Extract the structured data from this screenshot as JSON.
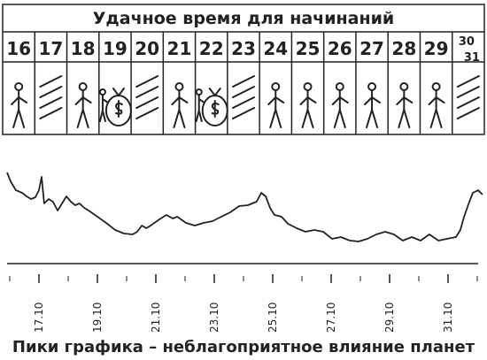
{
  "header": {
    "title": "Удачное время для начинаний",
    "days": [
      "16",
      "17",
      "18",
      "19",
      "20",
      "21",
      "22",
      "23",
      "24",
      "25",
      "26",
      "27",
      "28",
      "29",
      "30",
      "31"
    ]
  },
  "chart_data": {
    "type": "line",
    "x": [
      15.91,
      16.03,
      16.21,
      16.42,
      16.58,
      16.73,
      16.88,
      17.0,
      17.09,
      17.18,
      17.33,
      17.48,
      17.64,
      17.79,
      17.94,
      18.09,
      18.24,
      18.39,
      18.55,
      18.7,
      19.0,
      19.3,
      19.61,
      19.91,
      20.21,
      20.36,
      20.52,
      20.67,
      20.82,
      21.12,
      21.36,
      21.58,
      21.73,
      22.03,
      22.33,
      22.64,
      22.94,
      23.24,
      23.55,
      23.85,
      24.15,
      24.45,
      24.61,
      24.76,
      24.91,
      25.06,
      25.3,
      25.52,
      25.82,
      26.12,
      26.42,
      26.73,
      27.03,
      27.33,
      27.64,
      27.94,
      28.24,
      28.55,
      28.85,
      29.15,
      29.45,
      29.76,
      30.06,
      30.36,
      30.67,
      30.97,
      31.27,
      31.42,
      31.55,
      31.73,
      31.85,
      32.03,
      32.18
    ],
    "values": [
      103,
      93,
      83,
      80,
      76,
      73,
      75,
      83,
      98,
      68,
      73,
      70,
      60,
      68,
      76,
      70,
      66,
      68,
      63,
      60,
      53,
      46,
      38,
      34,
      33,
      36,
      43,
      40,
      43,
      50,
      55,
      51,
      53,
      46,
      43,
      46,
      48,
      53,
      58,
      65,
      66,
      70,
      80,
      76,
      63,
      55,
      53,
      45,
      40,
      36,
      38,
      36,
      28,
      30,
      26,
      25,
      28,
      33,
      36,
      33,
      26,
      30,
      26,
      33,
      26,
      28,
      30,
      38,
      53,
      70,
      80,
      83,
      78
    ],
    "color": "#222222",
    "xlim": [
      15.9,
      32.2
    ],
    "ylim": [
      0,
      110
    ],
    "xticks": [
      {
        "value": 17,
        "label": "17.10"
      },
      {
        "value": 19,
        "label": "19.10"
      },
      {
        "value": 21,
        "label": "21.10"
      },
      {
        "value": 23,
        "label": "23.10"
      },
      {
        "value": 25,
        "label": "25.10"
      },
      {
        "value": 27,
        "label": "27.10"
      },
      {
        "value": 29,
        "label": "29.10"
      },
      {
        "value": 31,
        "label": "31.10"
      }
    ],
    "caption": "Пики графика – неблагоприятное влияние планет"
  }
}
